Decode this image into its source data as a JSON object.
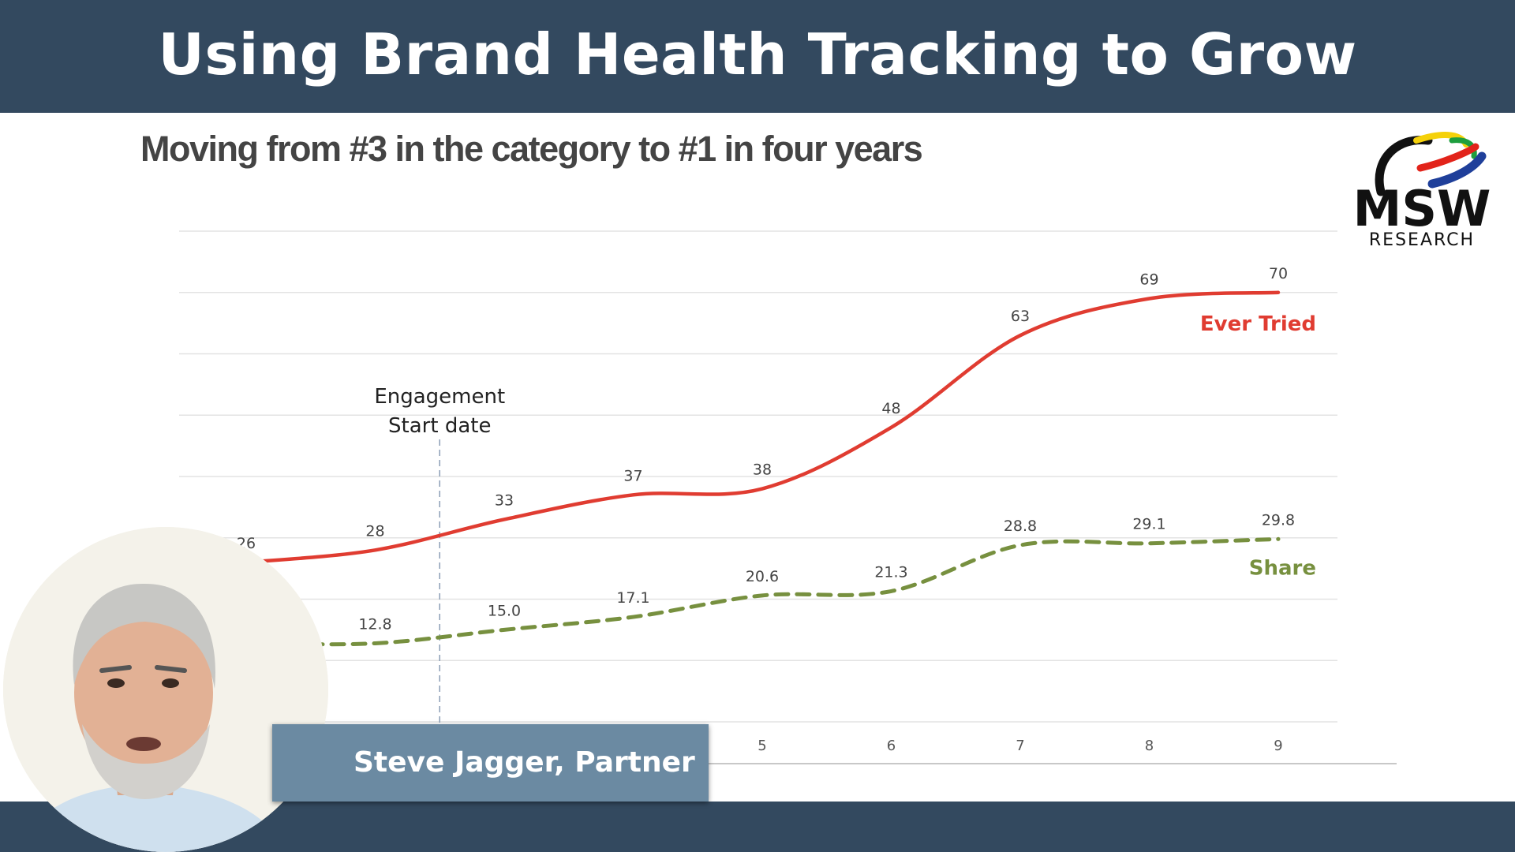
{
  "banner": {
    "title": "Using Brand Health Tracking to Grow"
  },
  "slide": {
    "title": "Moving from #3 in the category to #1 in four years"
  },
  "logo": {
    "name": "MSW",
    "subtitle": "RESEARCH",
    "colors": [
      "#111111",
      "#e2231a",
      "#f5d10a",
      "#1e9e3e",
      "#1f3f9a"
    ]
  },
  "presenter": {
    "name": "Steve Jagger, Partner"
  },
  "chart_data": {
    "type": "line",
    "x": [
      1,
      2,
      3,
      4,
      5,
      6,
      7,
      8,
      9
    ],
    "x_tick_labels": [
      "5",
      "6",
      "7",
      "8",
      "9"
    ],
    "ylim": [
      0,
      80
    ],
    "grid": true,
    "series": [
      {
        "name": "Ever Tried",
        "color": "#e03c31",
        "style": "solid",
        "values": [
          26,
          28,
          33,
          37,
          38,
          48,
          63,
          69,
          70
        ],
        "labels": [
          "26",
          "28",
          "33",
          "37",
          "38",
          "48",
          "63",
          "69",
          "70"
        ]
      },
      {
        "name": "Share",
        "color": "#77903f",
        "style": "dashed",
        "values": [
          12.8,
          12.8,
          15.0,
          17.1,
          20.6,
          21.3,
          28.8,
          29.1,
          29.8
        ],
        "labels": [
          "",
          "12.8",
          "15.0",
          "17.1",
          "20.6",
          "21.3",
          "28.8",
          "29.1",
          "29.8"
        ]
      }
    ],
    "annotation": {
      "line1": "Engagement",
      "line2": "Start date",
      "x": 2.5
    }
  }
}
